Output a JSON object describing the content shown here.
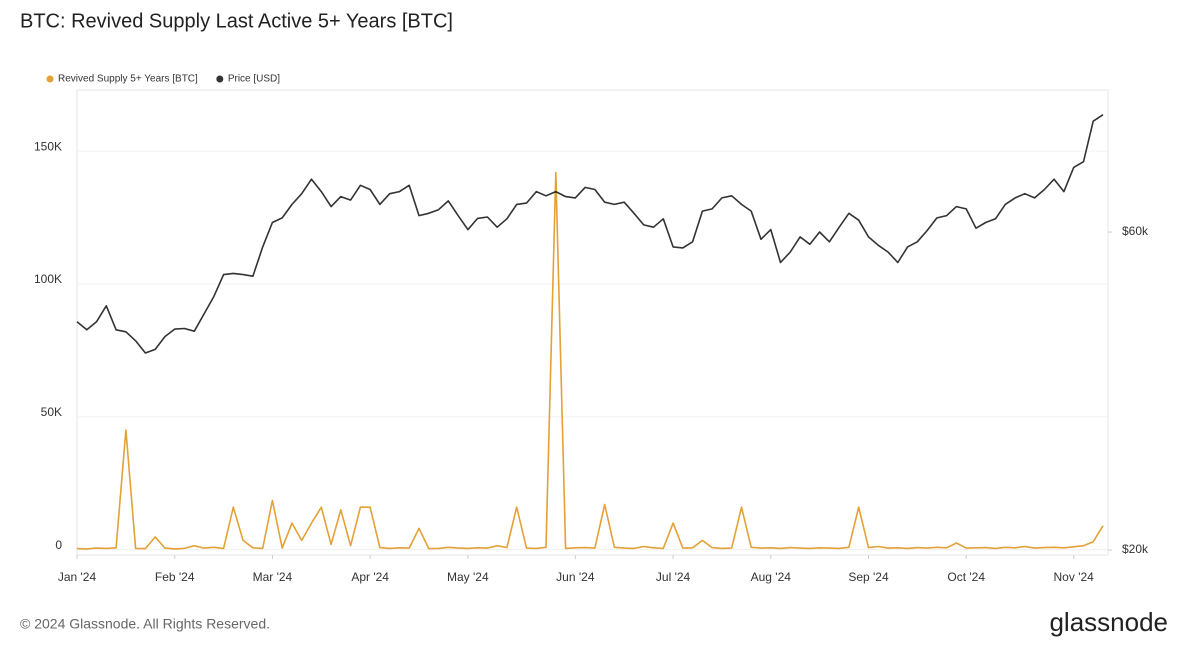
{
  "chart_data": {
    "type": "line",
    "title": "BTC: Revived Supply Last Active 5+ Years [BTC]",
    "footer": "© 2024 Glassnode. All Rights Reserved.",
    "brand": "glassnode",
    "legend": "top-left",
    "grid": true,
    "categories": [
      "Jan '24",
      null,
      null,
      null,
      null,
      null,
      null,
      null,
      null,
      null,
      "Feb '24",
      null,
      null,
      null,
      null,
      null,
      null,
      null,
      null,
      null,
      "Mar '24",
      null,
      null,
      null,
      null,
      null,
      null,
      null,
      null,
      null,
      "Apr '24",
      null,
      null,
      null,
      null,
      null,
      null,
      null,
      null,
      null,
      "May '24",
      null,
      null,
      null,
      null,
      null,
      null,
      null,
      null,
      null,
      null,
      "Jun '24",
      null,
      null,
      null,
      null,
      null,
      null,
      null,
      null,
      null,
      "Jul '24",
      null,
      null,
      null,
      null,
      null,
      null,
      null,
      null,
      null,
      "Aug '24",
      null,
      null,
      null,
      null,
      null,
      null,
      null,
      null,
      null,
      "Sep '24",
      null,
      null,
      null,
      null,
      null,
      null,
      null,
      null,
      null,
      "Oct '24",
      null,
      null,
      null,
      null,
      null,
      null,
      null,
      null,
      null,
      null,
      "Nov '24",
      null,
      null,
      null
    ],
    "ylim": [
      -2000,
      173000
    ],
    "yticks": [
      0,
      {
        "value": 50000,
        "label": "50K"
      },
      {
        "value": 100000,
        "label": "100K"
      },
      {
        "value": 150000,
        "label": "150K"
      }
    ],
    "y2lim": [
      19660,
      98000
    ],
    "y2scale": "log",
    "y2ticks": [
      {
        "value": 20000,
        "label": "$20k"
      },
      {
        "value": 60000,
        "label": "$60k"
      }
    ],
    "series": [
      {
        "name": "Revived Supply 5+ Years [BTC]",
        "color": "#e3a136",
        "values": [
          400,
          300,
          600,
          500,
          700,
          45000,
          500,
          400,
          4800,
          600,
          300,
          500,
          1500,
          600,
          900,
          500,
          16000,
          3500,
          700,
          500,
          18500,
          600,
          10000,
          3500,
          10000,
          16000,
          2000,
          15000,
          1500,
          16000,
          16000,
          800,
          500,
          700,
          600,
          8000,
          400,
          500,
          900,
          600,
          500,
          700,
          600,
          1500,
          800,
          16000,
          600,
          500,
          900,
          142000,
          500,
          700,
          800,
          600,
          17000,
          900,
          600,
          500,
          1200,
          700,
          500,
          10000,
          600,
          700,
          3500,
          800,
          500,
          600,
          16000,
          900,
          600,
          700,
          500,
          800,
          600,
          500,
          700,
          600,
          500,
          900,
          16000,
          800,
          1200,
          600,
          700,
          500,
          800,
          600,
          900,
          700,
          2500,
          600,
          700,
          800,
          500,
          900,
          700,
          1200,
          600,
          800,
          900,
          700,
          1100,
          1500,
          3000,
          9000
        ]
      },
      {
        "name": "Price [USD]",
        "color": "#333333",
        "axis": "y2",
        "values": [
          44000,
          42800,
          44000,
          46500,
          42800,
          42500,
          41200,
          39500,
          40000,
          41800,
          42900,
          43000,
          42600,
          45200,
          48000,
          51800,
          52000,
          51800,
          51500,
          57000,
          62000,
          63000,
          66000,
          68500,
          72000,
          69000,
          65500,
          67800,
          67000,
          70500,
          69500,
          66000,
          68500,
          69000,
          70500,
          63500,
          64000,
          64800,
          66800,
          63500,
          60500,
          62900,
          63200,
          61000,
          62800,
          66000,
          66300,
          69000,
          68000,
          69000,
          67800,
          67500,
          70000,
          69500,
          66500,
          66000,
          66500,
          64000,
          61500,
          61000,
          62800,
          57000,
          56800,
          58000,
          64500,
          65000,
          67500,
          68000,
          66000,
          64500,
          58500,
          60500,
          54000,
          56000,
          59000,
          57500,
          60000,
          58000,
          61000,
          64000,
          62500,
          59000,
          57300,
          56000,
          54000,
          57000,
          58000,
          60300,
          63000,
          63500,
          65500,
          65000,
          60800,
          62000,
          62800,
          66000,
          67500,
          68500,
          67500,
          69500,
          72000,
          69000,
          75000,
          76500,
          88000,
          90000
        ]
      }
    ]
  }
}
